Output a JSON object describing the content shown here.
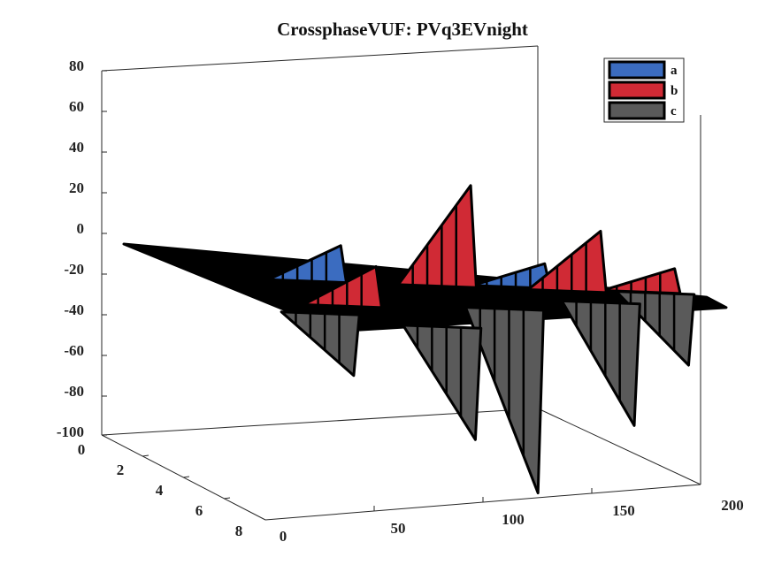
{
  "chart_data": {
    "type": "area",
    "title": "CrossphaseVUF: PVq3EVnight",
    "z_ticks": [
      "80",
      "60",
      "40",
      "20",
      "0",
      "-20",
      "-40",
      "-60",
      "-80",
      "-100"
    ],
    "y_ticks": [
      "0",
      "2",
      "4",
      "6",
      "8"
    ],
    "x_ticks": [
      "0",
      "50",
      "100",
      "150",
      "200"
    ],
    "zlim": [
      -100,
      80
    ],
    "xlim": [
      0,
      200
    ],
    "ylim": [
      0,
      8
    ],
    "legend_position": "top-right",
    "colors": {
      "a": "#3b6cc0",
      "b": "#d02a35",
      "c": "#5a5a5a",
      "edge": "#000000"
    },
    "series": [
      {
        "name": "a",
        "peaks": [
          {
            "x": 60,
            "y": 2.5,
            "z": 18
          },
          {
            "x": 140,
            "y": 1.5,
            "z": 12
          }
        ]
      },
      {
        "name": "b",
        "peaks": [
          {
            "x": 55,
            "y": 5,
            "z": 20
          },
          {
            "x": 110,
            "y": 2,
            "z": 50
          },
          {
            "x": 160,
            "y": 1.5,
            "z": 30
          },
          {
            "x": 190,
            "y": 1,
            "z": 12
          }
        ]
      },
      {
        "name": "c",
        "peaks": [
          {
            "x": 40,
            "y": 6,
            "z": -30
          },
          {
            "x": 80,
            "y": 6.5,
            "z": -55
          },
          {
            "x": 120,
            "y": 4,
            "z": -90
          },
          {
            "x": 165,
            "y": 2.5,
            "z": -60
          },
          {
            "x": 195,
            "y": 1,
            "z": -35
          }
        ]
      }
    ]
  }
}
